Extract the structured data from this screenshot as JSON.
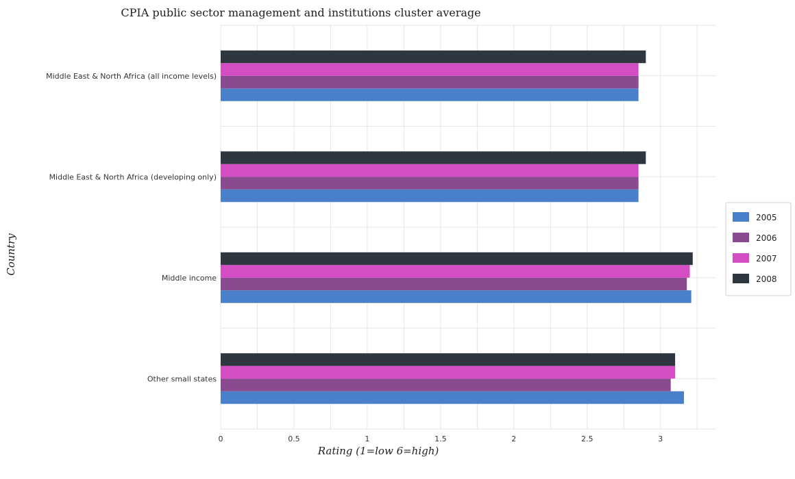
{
  "chart_data": {
    "type": "bar",
    "orientation": "horizontal",
    "title": "CPIA public sector management and institutions cluster average",
    "xlabel": "Rating (1=low 6=high)",
    "ylabel": "Country",
    "xlim": [
      0,
      3.38
    ],
    "xticks": [
      "0",
      "0.5",
      "1",
      "1.5",
      "2",
      "2.5",
      "3"
    ],
    "xtick_values": [
      0,
      0.5,
      1,
      1.5,
      2,
      2.5,
      3
    ],
    "grid": true,
    "legend_position": "right",
    "categories": [
      "Middle East & North Africa (all income levels)",
      "Middle East & North Africa (developing only)",
      "Middle income",
      "Other small states"
    ],
    "series": [
      {
        "name": "2005",
        "color": "#4a7fc9",
        "values": [
          2.85,
          2.85,
          3.21,
          3.16
        ]
      },
      {
        "name": "2006",
        "color": "#8a4a8f",
        "values": [
          2.85,
          2.85,
          3.18,
          3.07
        ]
      },
      {
        "name": "2007",
        "color": "#d44dc4",
        "values": [
          2.85,
          2.85,
          3.2,
          3.1
        ]
      },
      {
        "name": "2008",
        "color": "#2e3740",
        "values": [
          2.9,
          2.9,
          3.22,
          3.1
        ]
      }
    ]
  }
}
